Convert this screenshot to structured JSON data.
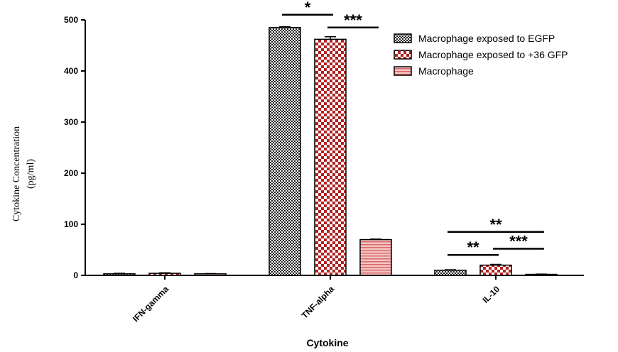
{
  "chart_data": {
    "type": "bar",
    "title": "",
    "xlabel": "Cytokine",
    "ylabel_lines": [
      "Cytokine Concentration",
      "(pg/ml)"
    ],
    "ylim": [
      0,
      500
    ],
    "yticks": [
      0,
      100,
      200,
      300,
      400,
      500
    ],
    "categories": [
      "IFN-gamma",
      "TNF-alpha",
      "IL-10"
    ],
    "series": [
      {
        "name": "Macrophage exposed to EGFP",
        "values": [
          3,
          485,
          10
        ],
        "errors": [
          1,
          1.5,
          1
        ],
        "pattern": "small-check",
        "color": "#000000"
      },
      {
        "name": "Macrophage exposed to +36 GFP",
        "values": [
          4,
          462,
          20
        ],
        "errors": [
          1,
          5,
          1.5
        ],
        "pattern": "large-check",
        "color": "#b22222"
      },
      {
        "name": "Macrophage",
        "values": [
          3,
          70,
          2
        ],
        "errors": [
          0.5,
          1,
          0.5
        ],
        "pattern": "horizontal-stripes",
        "color": "#e88a8a"
      }
    ],
    "legend_position": "top-right",
    "grid": false,
    "significance": [
      {
        "category": 1,
        "from": 0,
        "to": 1,
        "label": "*",
        "y": 510
      },
      {
        "category": 1,
        "from": 1,
        "to": 2,
        "label": "***",
        "y": 485
      },
      {
        "category": 2,
        "from": 0,
        "to": 2,
        "label": "**",
        "y": 85
      },
      {
        "category": 2,
        "from": 0,
        "to": 1,
        "label": "**",
        "y": 40
      },
      {
        "category": 2,
        "from": 1,
        "to": 2,
        "label": "***",
        "y": 52
      }
    ]
  }
}
